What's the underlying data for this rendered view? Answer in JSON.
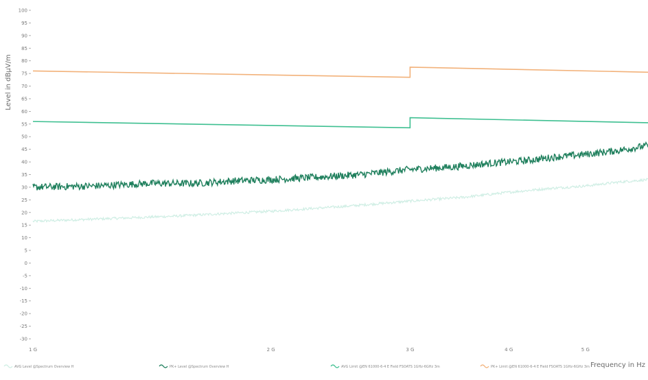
{
  "chart_data": {
    "type": "line",
    "title": "",
    "xlabel": "Frequency in Hz",
    "ylabel": "Level in dBµV/m",
    "xscale": "log",
    "xlim": [
      1000000000,
      6000000000
    ],
    "ylim": [
      -30,
      100
    ],
    "grid": false,
    "legend_placement": "bottom",
    "y_ticks": [
      100,
      95,
      90,
      85,
      80,
      75,
      70,
      65,
      60,
      55,
      50,
      45,
      40,
      35,
      30,
      25,
      20,
      15,
      10,
      5,
      0,
      -5,
      -10,
      -15,
      -20,
      -25,
      -30
    ],
    "y_tick_labels": [
      "100",
      "95",
      "90",
      "85",
      "80",
      "75",
      "70",
      "65",
      "60",
      "55",
      "50",
      "45",
      "40",
      "35",
      "30",
      "25",
      "20",
      "15",
      "10",
      "5",
      "0",
      "-5",
      "-10",
      "-15",
      "-20",
      "-25",
      "-30"
    ],
    "x_ticks": [
      1000000000,
      2000000000,
      3000000000,
      4000000000,
      5000000000
    ],
    "x_tick_labels": [
      "1 G",
      "2 G",
      "3 G",
      "4 G",
      "5 G"
    ],
    "series": [
      {
        "name": "AVG Level @Spectrum Overview H",
        "color": "#cfeee4",
        "x": [
          1000000000,
          1500000000,
          2000000000,
          2500000000,
          3000000000,
          3500000000,
          4000000000,
          4500000000,
          5000000000,
          5500000000,
          6000000000
        ],
        "y": [
          16.5,
          18.5,
          20.5,
          22.5,
          24.5,
          26.0,
          28.0,
          29.5,
          30.5,
          32.0,
          33.0
        ]
      },
      {
        "name": "PK+ Level @Spectrum Overview H",
        "color": "#1e7f5c",
        "x": [
          1000000000,
          1200000000,
          1400000000,
          1600000000,
          1800000000,
          2000000000,
          2300000000,
          2600000000,
          3000000000,
          3400000000,
          3800000000,
          4200000000,
          4600000000,
          5000000000,
          5500000000,
          6000000000
        ],
        "y": [
          30.0,
          30.5,
          31.5,
          31.5,
          32.5,
          33.0,
          34.0,
          35.0,
          37.0,
          38.0,
          39.5,
          40.5,
          42.0,
          43.0,
          44.5,
          46.5
        ]
      },
      {
        "name": "AVG Limit @EN 61000-6-4 E Field FSOATS 1GHz-6GHz 3m",
        "color": "#3dbf90",
        "x": [
          1000000000,
          3000000000,
          3000000000,
          6000000000
        ],
        "y": [
          56.0,
          53.5,
          57.5,
          55.5
        ]
      },
      {
        "name": "PK+ Limit @EN 61000-6-4 E Field FSOATS 1GHz-6GHz 3m",
        "color": "#f2b179",
        "x": [
          1000000000,
          3000000000,
          3000000000,
          6000000000
        ],
        "y": [
          76.0,
          73.5,
          77.5,
          75.5
        ]
      }
    ]
  }
}
